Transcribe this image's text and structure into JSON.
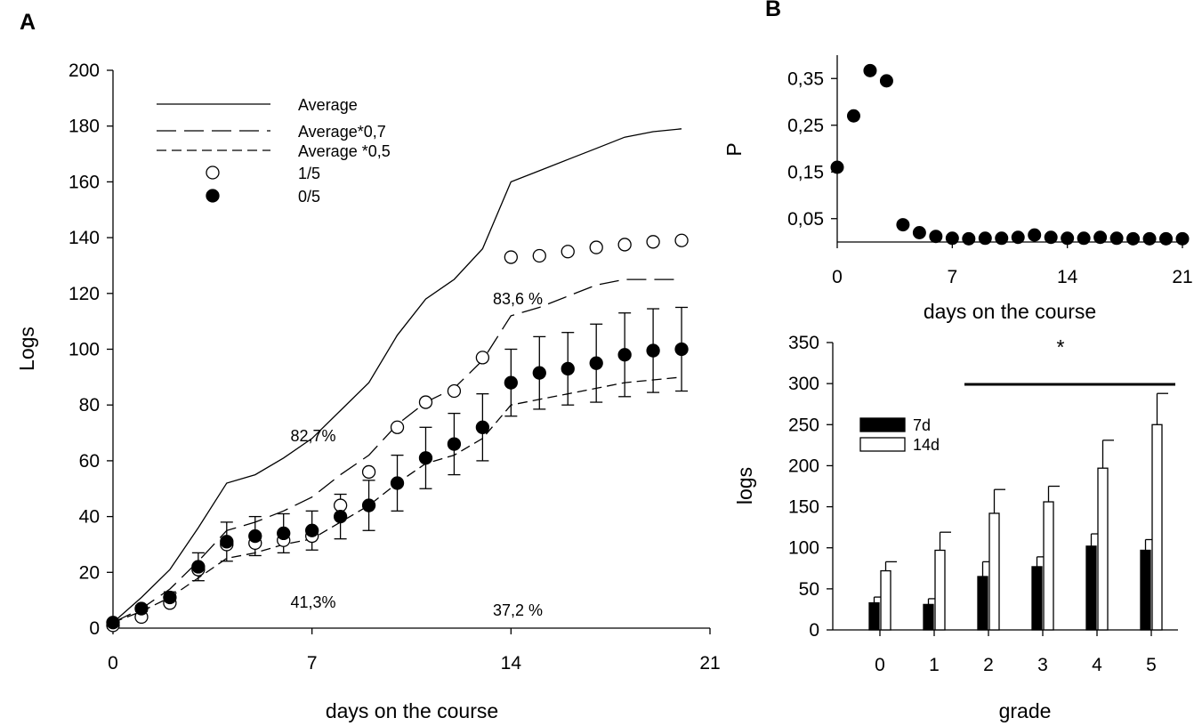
{
  "chart_data": [
    {
      "panel_label": "A",
      "type": "line",
      "xlabel": "days on the course",
      "ylabel": "Logs",
      "xlim": [
        0,
        21
      ],
      "ylim": [
        0,
        200
      ],
      "x_ticks": [
        0,
        7,
        14,
        21
      ],
      "y_ticks": [
        0,
        20,
        40,
        60,
        80,
        100,
        120,
        140,
        160,
        180,
        200
      ],
      "legend_position": "top-left",
      "series": [
        {
          "name": "Average",
          "style": "solid",
          "x": [
            0,
            1,
            2,
            3,
            4,
            5,
            6,
            7,
            8,
            9,
            10,
            11,
            12,
            13,
            14,
            15,
            16,
            17,
            18,
            19,
            20
          ],
          "y": [
            2,
            11,
            21,
            36,
            52,
            55,
            61,
            68,
            78,
            88,
            105,
            118,
            125,
            136,
            160,
            164,
            168,
            172,
            176,
            178,
            179
          ]
        },
        {
          "name": "Average*0,7",
          "style": "long-dash",
          "x": [
            0,
            1,
            2,
            3,
            4,
            5,
            6,
            7,
            8,
            9,
            10,
            11,
            12,
            13,
            14,
            15,
            16,
            17,
            18,
            19,
            20
          ],
          "y": [
            2,
            7,
            14,
            24,
            35,
            38,
            42,
            47,
            55,
            62,
            73,
            81,
            86,
            96,
            112,
            115,
            119,
            123,
            125,
            125,
            125
          ]
        },
        {
          "name": "Average *0,5",
          "style": "short-dash",
          "x": [
            0,
            1,
            2,
            3,
            4,
            5,
            6,
            7,
            8,
            9,
            10,
            11,
            12,
            13,
            14,
            15,
            16,
            17,
            18,
            19,
            20
          ],
          "y": [
            2,
            6,
            11,
            18,
            25,
            27,
            30,
            32,
            38,
            44,
            52,
            59,
            62,
            68,
            80,
            82,
            84,
            86,
            88,
            89,
            90
          ]
        },
        {
          "name": "1/5",
          "style": "open-circle",
          "x": [
            0,
            1,
            2,
            3,
            4,
            5,
            6,
            7,
            8,
            9,
            10,
            11,
            12,
            13,
            14,
            15,
            16,
            17,
            18,
            19,
            20
          ],
          "y": [
            1,
            4,
            9,
            21,
            30,
            30.5,
            31.5,
            33,
            44,
            56,
            72,
            81,
            85,
            97,
            133,
            133.5,
            135,
            136.5,
            137.5,
            138.5,
            139
          ]
        },
        {
          "name": "0/5",
          "style": "filled-circle",
          "x": [
            0,
            1,
            2,
            3,
            4,
            5,
            6,
            7,
            8,
            9,
            10,
            11,
            12,
            13,
            14,
            15,
            16,
            17,
            18,
            19,
            20
          ],
          "y": [
            2,
            7,
            11,
            22,
            31,
            33,
            34,
            35,
            40,
            44,
            52,
            61,
            66,
            72,
            88,
            91.5,
            93,
            95,
            98,
            99.5,
            100
          ],
          "err": [
            0,
            1,
            2,
            5,
            7,
            7,
            7,
            7,
            8,
            9,
            10,
            11,
            11,
            12,
            12,
            13,
            13,
            14,
            15,
            15,
            15
          ]
        }
      ],
      "annotations": [
        "82,7%",
        "83,6 %",
        "41,3%",
        "37,2 %"
      ]
    },
    {
      "panel_label": "B",
      "type": "scatter",
      "xlabel": "days on the course",
      "ylabel": "P",
      "xlim": [
        0,
        21
      ],
      "ylim": [
        0,
        0.4
      ],
      "x_ticks": [
        "0",
        "7",
        "14",
        "21"
      ],
      "y_ticks": [
        "0,05",
        "0,15",
        "0,25",
        "0,35"
      ],
      "reference_line": 0.005,
      "x": [
        0,
        1,
        2,
        3,
        4,
        5,
        6,
        7,
        8,
        9,
        10,
        11,
        12,
        13,
        14,
        15,
        16,
        17,
        18,
        19,
        20,
        21
      ],
      "y": [
        0.16,
        0.27,
        0.367,
        0.345,
        0.037,
        0.02,
        0.012,
        0.008,
        0.007,
        0.008,
        0.008,
        0.01,
        0.015,
        0.01,
        0.008,
        0.008,
        0.01,
        0.008,
        0.007,
        0.007,
        0.007,
        0.007
      ]
    },
    {
      "type": "bar",
      "xlabel": "grade",
      "ylabel": "logs",
      "ylim": [
        0,
        350
      ],
      "y_ticks": [
        0,
        50,
        100,
        150,
        200,
        250,
        300,
        350
      ],
      "categories": [
        "0",
        "1",
        "2",
        "3",
        "4",
        "5"
      ],
      "legend_position": "upper-left",
      "series": [
        {
          "name": "7d",
          "color": "#000000",
          "values": [
            33,
            31,
            65,
            77,
            102,
            97
          ],
          "err": [
            7,
            7,
            18,
            12,
            15,
            13
          ]
        },
        {
          "name": "14d",
          "color": "#ffffff",
          "values": [
            72,
            97,
            142,
            156,
            197,
            250
          ],
          "err": [
            11,
            22,
            29,
            19,
            34,
            38
          ]
        }
      ],
      "significance": {
        "label": "*",
        "from": "2",
        "to": "5"
      }
    }
  ]
}
